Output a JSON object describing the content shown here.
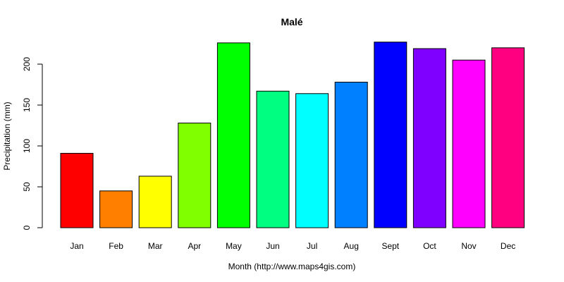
{
  "chart_data": {
    "type": "bar",
    "title": "Malé",
    "xlabel": "Month (http://www.maps4gis.com)",
    "ylabel": "Precipitation (mm)",
    "categories": [
      "Jan",
      "Feb",
      "Mar",
      "Apr",
      "May",
      "Jun",
      "Jul",
      "Aug",
      "Sept",
      "Oct",
      "Nov",
      "Dec"
    ],
    "values": [
      91,
      45,
      63,
      128,
      226,
      167,
      164,
      178,
      227,
      219,
      205,
      220
    ],
    "colors": [
      "#FF0000",
      "#FF8000",
      "#FFFF00",
      "#80FF00",
      "#00FF00",
      "#00FF80",
      "#00FFFF",
      "#0080FF",
      "#0000FF",
      "#8000FF",
      "#FF00FF",
      "#FF0080"
    ],
    "yticks": [
      0,
      50,
      100,
      150,
      200
    ],
    "ylim": [
      0,
      230
    ],
    "grid": false,
    "legend": "none"
  }
}
